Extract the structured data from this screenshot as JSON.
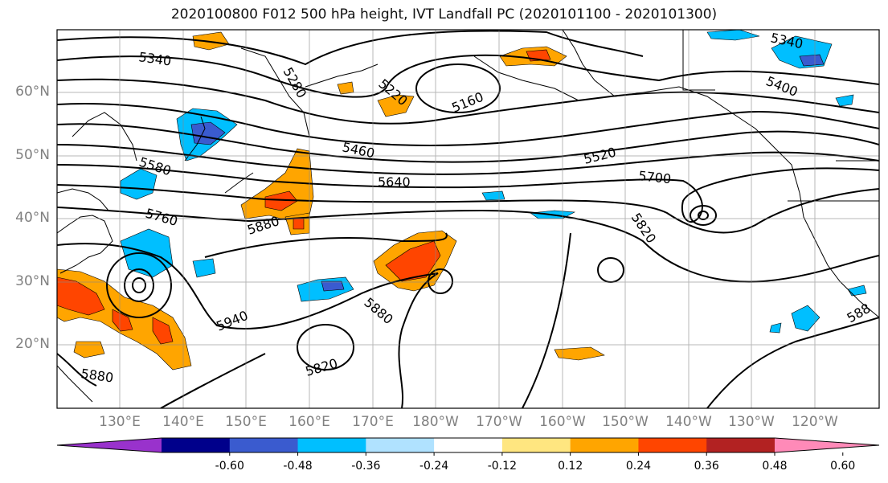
{
  "title": "2020100800 F012 500 hPa height, IVT Landfall PC (2020101100 - 2020101300)",
  "latitude_labels": [
    "60°N",
    "50°N",
    "40°N",
    "30°N",
    "20°N"
  ],
  "longitude_labels": [
    "130°E",
    "140°E",
    "150°E",
    "160°E",
    "170°E",
    "180°W",
    "170°W",
    "160°W",
    "150°W",
    "140°W",
    "130°W",
    "120°W"
  ],
  "contour_labels": [
    "5340",
    "5280",
    "5220",
    "5160",
    "5340",
    "5400",
    "5460",
    "5520",
    "5580",
    "5640",
    "5700",
    "5760",
    "5880",
    "5820",
    "5940",
    "5880",
    "5820",
    "5880",
    "588"
  ],
  "colorbar": {
    "tick_labels": [
      "-0.60",
      "-0.48",
      "-0.36",
      "-0.24",
      "-0.12",
      "0.12",
      "0.24",
      "0.36",
      "0.48",
      "0.60"
    ],
    "colors": [
      "#9932CC",
      "#00008B",
      "#3A5BCF",
      "#00BFFF",
      "#B0E2FF",
      "#FFFFFF",
      "#FFE680",
      "#FFA500",
      "#FF4500",
      "#B22222",
      "#FF8AB8"
    ]
  }
}
